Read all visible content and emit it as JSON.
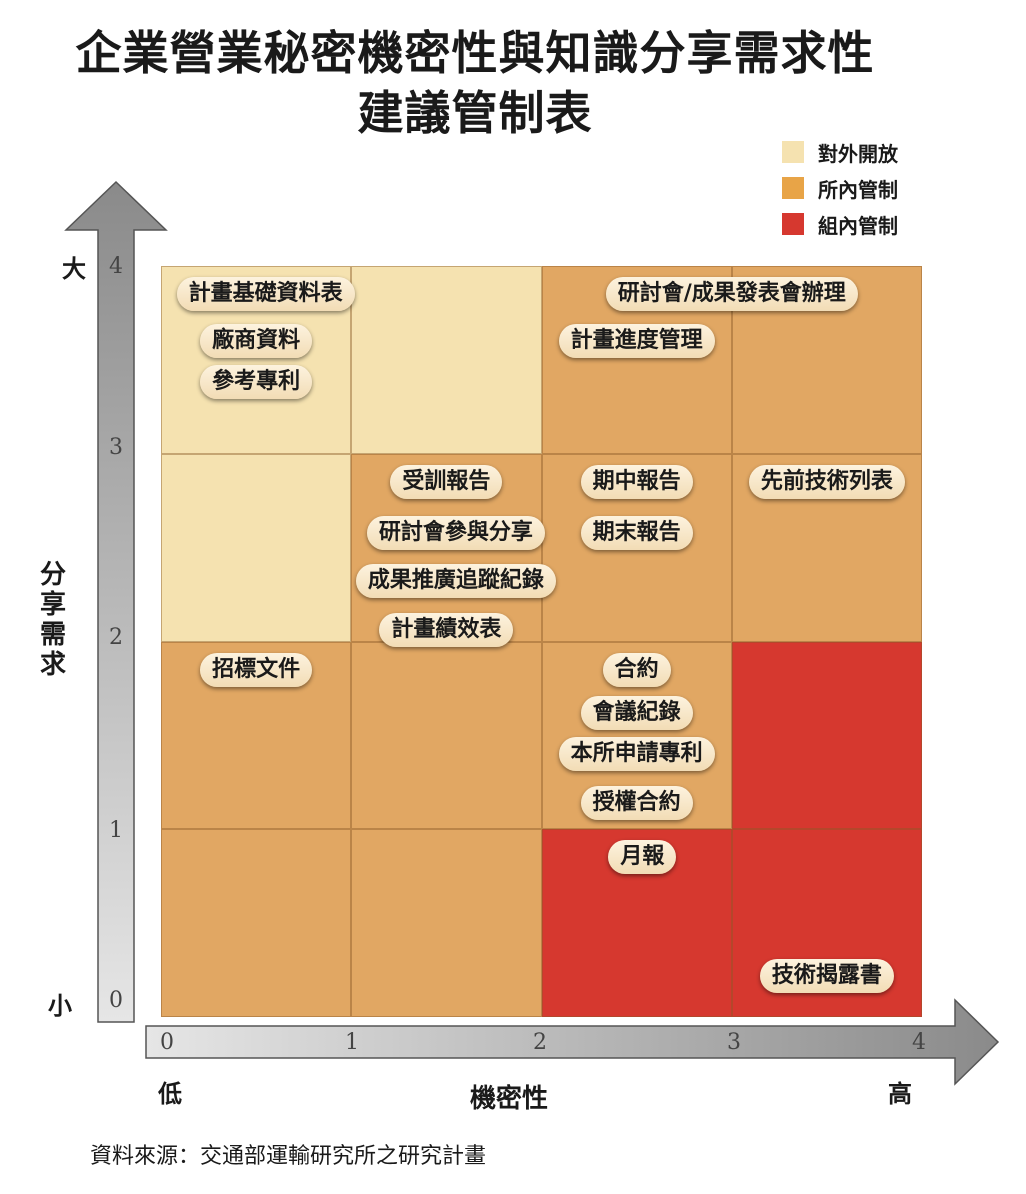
{
  "title": {
    "line1": "企業營業秘密機密性與知識分享需求性",
    "line2": "建議管制表"
  },
  "legend": [
    {
      "label": "對外開放",
      "color": "#f5e2b0"
    },
    {
      "label": "所內管制",
      "color": "#e8a447"
    },
    {
      "label": "組內管制",
      "color": "#d6382f"
    }
  ],
  "colors": {
    "open": "#f5e2b0",
    "internal": "#e1a763",
    "group": "#d6382f"
  },
  "x_axis": {
    "title": "機密性",
    "low": "低",
    "high": "高",
    "ticks": [
      "0",
      "1",
      "2",
      "3",
      "4"
    ]
  },
  "y_axis": {
    "title": "分享需求",
    "high": "大",
    "low": "小",
    "ticks": [
      "0",
      "1",
      "2",
      "3",
      "4"
    ]
  },
  "grid": [
    {
      "col": 0,
      "row": 3,
      "zone": "open"
    },
    {
      "col": 1,
      "row": 3,
      "zone": "open"
    },
    {
      "col": 2,
      "row": 3,
      "zone": "internal"
    },
    {
      "col": 3,
      "row": 3,
      "zone": "internal"
    },
    {
      "col": 0,
      "row": 2,
      "zone": "open"
    },
    {
      "col": 1,
      "row": 2,
      "zone": "internal"
    },
    {
      "col": 2,
      "row": 2,
      "zone": "internal"
    },
    {
      "col": 3,
      "row": 2,
      "zone": "internal"
    },
    {
      "col": 0,
      "row": 1,
      "zone": "internal"
    },
    {
      "col": 1,
      "row": 1,
      "zone": "internal"
    },
    {
      "col": 2,
      "row": 1,
      "zone": "internal"
    },
    {
      "col": 3,
      "row": 1,
      "zone": "group"
    },
    {
      "col": 0,
      "row": 0,
      "zone": "internal"
    },
    {
      "col": 1,
      "row": 0,
      "zone": "internal"
    },
    {
      "col": 2,
      "row": 0,
      "zone": "group"
    },
    {
      "col": 3,
      "row": 0,
      "zone": "group"
    }
  ],
  "items": [
    {
      "label": "計畫基礎資料表",
      "x": 0.55,
      "y": 3.85
    },
    {
      "label": "廠商資料",
      "x": 0.5,
      "y": 3.6
    },
    {
      "label": "參考專利",
      "x": 0.5,
      "y": 3.38
    },
    {
      "label": "研討會/成果發表會辦理",
      "x": 3.0,
      "y": 3.85
    },
    {
      "label": "計畫進度管理",
      "x": 2.5,
      "y": 3.6
    },
    {
      "label": "受訓報告",
      "x": 1.5,
      "y": 2.85
    },
    {
      "label": "研討會參與分享",
      "x": 1.55,
      "y": 2.58
    },
    {
      "label": "成果推廣追蹤紀錄",
      "x": 1.55,
      "y": 2.32
    },
    {
      "label": "計畫績效表",
      "x": 1.5,
      "y": 2.06
    },
    {
      "label": "期中報告",
      "x": 2.5,
      "y": 2.85
    },
    {
      "label": "期末報告",
      "x": 2.5,
      "y": 2.58
    },
    {
      "label": "先前技術列表",
      "x": 3.5,
      "y": 2.85
    },
    {
      "label": "招標文件",
      "x": 0.5,
      "y": 1.85
    },
    {
      "label": "合約",
      "x": 2.5,
      "y": 1.85
    },
    {
      "label": "會議紀錄",
      "x": 2.5,
      "y": 1.62
    },
    {
      "label": "本所申請專利",
      "x": 2.5,
      "y": 1.4
    },
    {
      "label": "授權合約",
      "x": 2.5,
      "y": 1.14
    },
    {
      "label": "月報",
      "x": 2.53,
      "y": 0.85
    },
    {
      "label": "技術揭露書",
      "x": 3.5,
      "y": 0.22
    }
  ],
  "source": "資料來源：交通部運輸研究所之研究計畫"
}
